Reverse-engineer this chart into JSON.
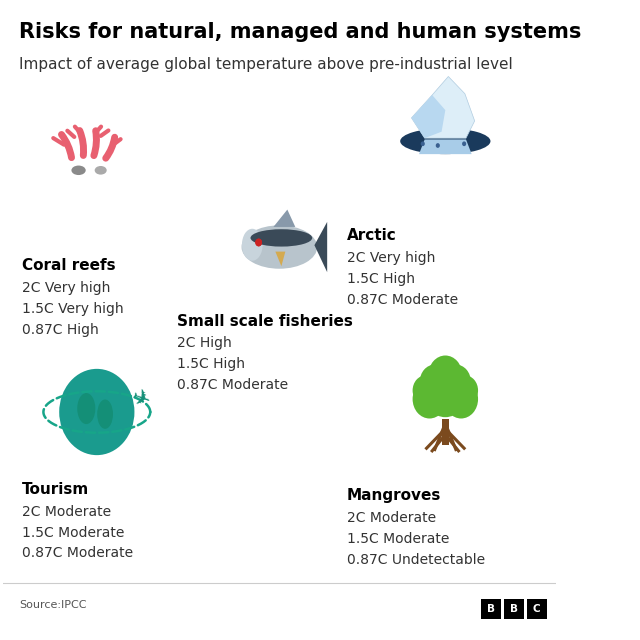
{
  "title": "Risks for natural, managed and human systems",
  "subtitle": "Impact of average global temperature above pre-industrial level",
  "source": "Source:IPCC",
  "background_color": "#ffffff",
  "title_color": "#000000",
  "subtitle_color": "#333333",
  "items": [
    {
      "name": "Coral reefs",
      "icon_type": "coral",
      "lines": [
        "2C Very high",
        "1.5C Very high",
        "0.87C High"
      ]
    },
    {
      "name": "Small scale fisheries",
      "icon_type": "fish",
      "lines": [
        "2C High",
        "1.5C High",
        "0.87C Moderate"
      ]
    },
    {
      "name": "Arctic",
      "icon_type": "arctic",
      "lines": [
        "2C Very high",
        "1.5C High",
        "0.87C Moderate"
      ]
    },
    {
      "name": "Tourism",
      "icon_type": "tourism",
      "lines": [
        "2C Moderate",
        "1.5C Moderate",
        "0.87C Moderate"
      ]
    },
    {
      "name": "Mangroves",
      "icon_type": "mangrove",
      "lines": [
        "2C Moderate",
        "1.5C Moderate",
        "0.87C Undetectable"
      ]
    }
  ]
}
